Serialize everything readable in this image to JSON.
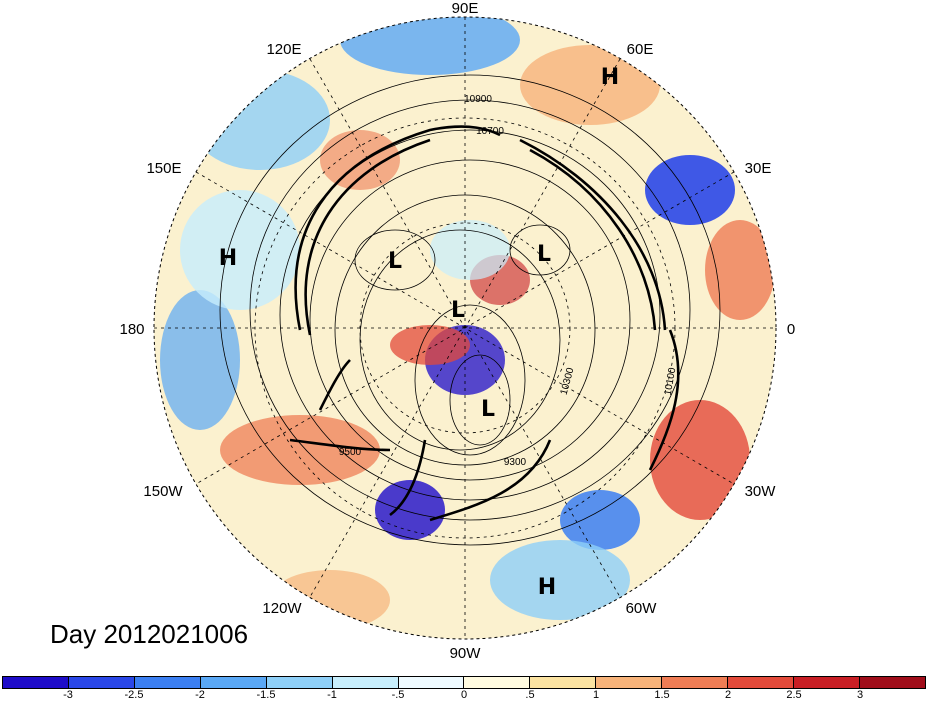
{
  "title": "Day 2012021006",
  "longitude_labels": {
    "top": "90E",
    "upper_left": "120E",
    "upper_right": "60E",
    "left_upper": "150E",
    "right_upper": "30E",
    "left": "180",
    "right": "0",
    "left_lower": "150W",
    "right_lower": "30W",
    "lower_left": "120W",
    "lower_right": "60W",
    "bottom": "90W"
  },
  "pressure_centers": [
    {
      "label": "H",
      "id": "h-north"
    },
    {
      "label": "H",
      "id": "h-west"
    },
    {
      "label": "L",
      "id": "l-1"
    },
    {
      "label": "L",
      "id": "l-2"
    },
    {
      "label": "L",
      "id": "l-3"
    },
    {
      "label": "L",
      "id": "l-4"
    },
    {
      "label": "H",
      "id": "h-south"
    }
  ],
  "contour_labels": [
    "10900",
    "10700",
    "10300",
    "10100",
    "9500",
    "9300"
  ],
  "colorbar": {
    "colors": [
      "#1e0cc9",
      "#2a47e8",
      "#3b7ff2",
      "#5aa8f5",
      "#8fd0f8",
      "#c7eefc",
      "#eefaff",
      "#fffbe0",
      "#fbe3a2",
      "#f7b37a",
      "#ef7d55",
      "#e34a3a",
      "#c81e24",
      "#a00d1a"
    ],
    "tick_labels": [
      "-3",
      "-2.5",
      "-2",
      "-1.5",
      "-1",
      "-.5",
      "0",
      ".5",
      "1",
      "1.5",
      "2",
      "2.5",
      "3"
    ]
  }
}
